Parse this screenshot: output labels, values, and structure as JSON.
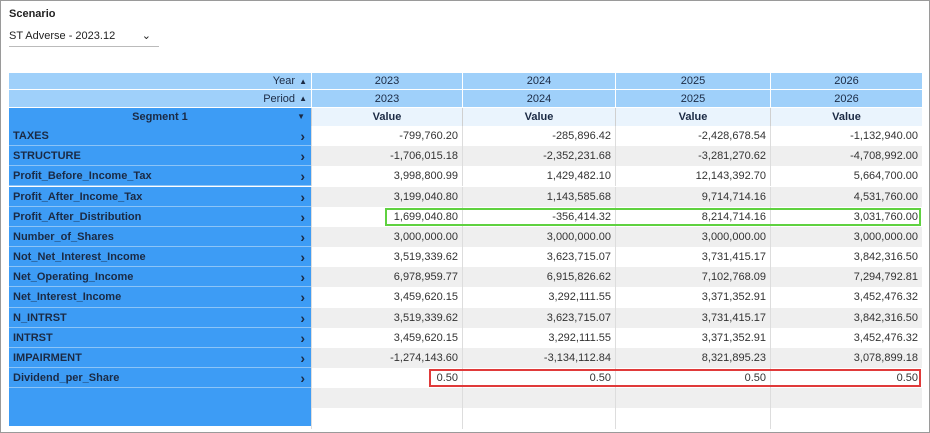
{
  "scenario": {
    "label": "Scenario",
    "selected": "ST Adverse - 2023.12"
  },
  "table": {
    "year_label": "Year",
    "period_label": "Period",
    "segment_label": "Segment 1",
    "years": [
      "2023",
      "2024",
      "2025",
      "2026"
    ],
    "periods": [
      "2023",
      "2024",
      "2025",
      "2026"
    ],
    "measures": [
      "Value",
      "Value",
      "Value",
      "Value"
    ],
    "rows": [
      {
        "name": "TAXES",
        "values": [
          "-799,760.20",
          "-285,896.42",
          "-2,428,678.54",
          "-1,132,940.00"
        ]
      },
      {
        "name": "STRUCTURE",
        "values": [
          "-1,706,015.18",
          "-2,352,231.68",
          "-3,281,270.62",
          "-4,708,992.00"
        ]
      },
      {
        "name": "Profit_Before_Income_Tax",
        "values": [
          "3,998,800.99",
          "1,429,482.10",
          "12,143,392.70",
          "5,664,700.00"
        ]
      },
      {
        "name": "Profit_After_Income_Tax",
        "values": [
          "3,199,040.80",
          "1,143,585.68",
          "9,714,714.16",
          "4,531,760.00"
        ]
      },
      {
        "name": "Profit_After_Distribution",
        "values": [
          "1,699,040.80",
          "-356,414.32",
          "8,214,714.16",
          "3,031,760.00"
        ]
      },
      {
        "name": "Number_of_Shares",
        "values": [
          "3,000,000.00",
          "3,000,000.00",
          "3,000,000.00",
          "3,000,000.00"
        ]
      },
      {
        "name": "Not_Net_Interest_Income",
        "values": [
          "3,519,339.62",
          "3,623,715.07",
          "3,731,415.17",
          "3,842,316.50"
        ]
      },
      {
        "name": "Net_Operating_Income",
        "values": [
          "6,978,959.77",
          "6,915,826.62",
          "7,102,768.09",
          "7,294,792.81"
        ]
      },
      {
        "name": "Net_Interest_Income",
        "values": [
          "3,459,620.15",
          "3,292,111.55",
          "3,371,352.91",
          "3,452,476.32"
        ]
      },
      {
        "name": "N_INTRST",
        "values": [
          "3,519,339.62",
          "3,623,715.07",
          "3,731,415.17",
          "3,842,316.50"
        ]
      },
      {
        "name": "INTRST",
        "values": [
          "3,459,620.15",
          "3,292,111.55",
          "3,371,352.91",
          "3,452,476.32"
        ]
      },
      {
        "name": "IMPAIRMENT",
        "values": [
          "-1,274,143.60",
          "-3,134,112.84",
          "8,321,895.23",
          "3,078,899.18"
        ]
      },
      {
        "name": "Dividend_per_Share",
        "values": [
          "0.50",
          "0.50",
          "0.50",
          "0.50"
        ]
      }
    ]
  }
}
